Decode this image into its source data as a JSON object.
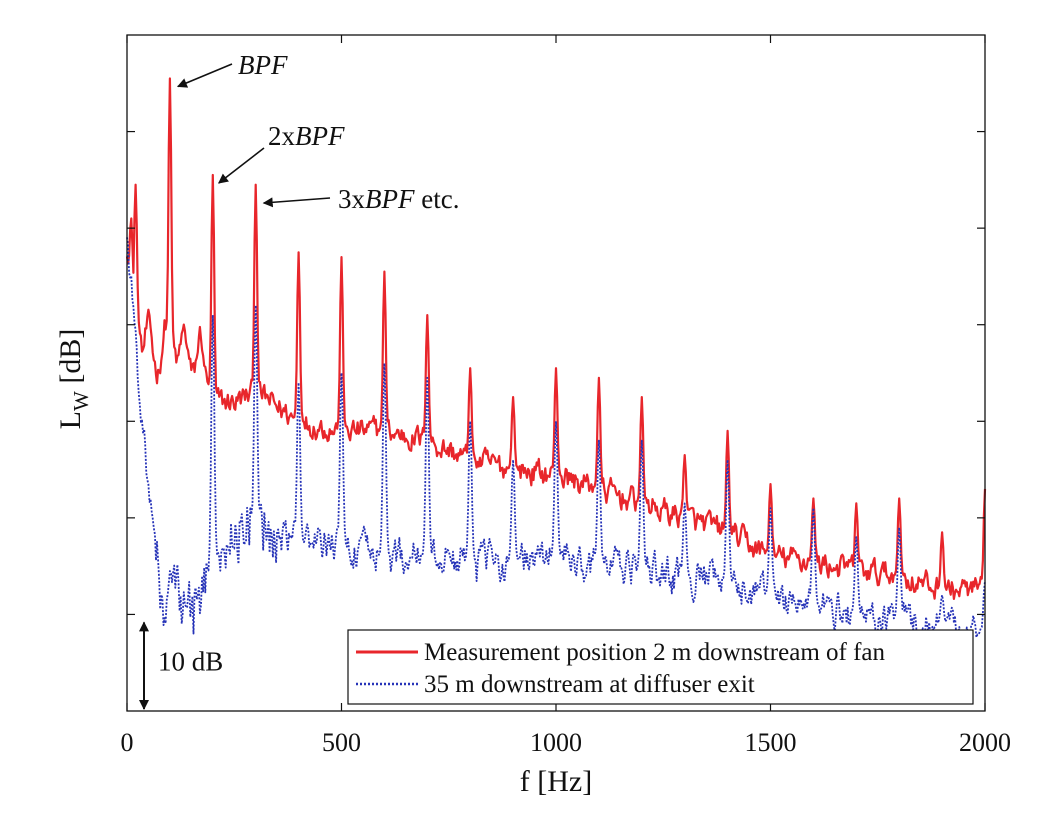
{
  "chart_data": {
    "type": "line",
    "xlabel": "f [Hz]",
    "ylabel": "L",
    "ylabel_sub": "W",
    "ylabel_unit": " [dB]",
    "xlim": [
      0,
      2000
    ],
    "ylim": [
      0,
      70
    ],
    "x_ticks": [
      0,
      500,
      1000,
      1500,
      2000
    ],
    "x_tick_labels": [
      "0",
      "500",
      "1000",
      "1500",
      "2000"
    ],
    "y_tick_values": [
      10,
      20,
      30,
      40,
      50,
      60
    ],
    "y_tick_labels": [],
    "grid": false,
    "legend_position": "bottom-right",
    "scale_bar": {
      "label": "10 dB",
      "from": 0,
      "to": 10
    },
    "annotations": [
      {
        "text_prefix": "",
        "text_italic": "BPF",
        "text_suffix": "",
        "target_x": 100,
        "target_y": 65.5
      },
      {
        "text_prefix": "2x",
        "text_italic": "BPF",
        "text_suffix": "",
        "target_x": 200,
        "target_y": 55.5
      },
      {
        "text_prefix": "3x",
        "text_italic": "BPF",
        "text_suffix": " etc.",
        "target_x": 300,
        "target_y": 54.5
      }
    ],
    "series": [
      {
        "name": "Measurement position 2 m downstream of fan",
        "color": "#e8262b",
        "style": "solid",
        "baseline": [
          [
            0,
            47
          ],
          [
            10,
            42
          ],
          [
            30,
            39
          ],
          [
            60,
            37
          ],
          [
            90,
            38
          ],
          [
            130,
            37
          ],
          [
            170,
            37
          ],
          [
            200,
            32
          ],
          [
            250,
            32
          ],
          [
            300,
            33
          ],
          [
            400,
            30
          ],
          [
            500,
            29
          ],
          [
            600,
            29
          ],
          [
            700,
            28
          ],
          [
            800,
            26
          ],
          [
            900,
            25
          ],
          [
            1000,
            24.5
          ],
          [
            1100,
            23
          ],
          [
            1200,
            21.5
          ],
          [
            1300,
            20
          ],
          [
            1400,
            18.5
          ],
          [
            1500,
            16
          ],
          [
            1600,
            15.5
          ],
          [
            1700,
            14.5
          ],
          [
            1800,
            14
          ],
          [
            1900,
            12.5
          ],
          [
            2000,
            12.5
          ]
        ],
        "peaks": [
          [
            10,
            51
          ],
          [
            20,
            54.5
          ],
          [
            100,
            65.5
          ],
          [
            200,
            55.5
          ],
          [
            300,
            54.5
          ],
          [
            400,
            47.5
          ],
          [
            500,
            47
          ],
          [
            600,
            45.5
          ],
          [
            700,
            41
          ],
          [
            800,
            35.5
          ],
          [
            900,
            32.5
          ],
          [
            1000,
            35.5
          ],
          [
            1100,
            34.5
          ],
          [
            1200,
            32.5
          ],
          [
            1300,
            26.5
          ],
          [
            1400,
            29
          ],
          [
            1500,
            23.5
          ],
          [
            1600,
            22
          ],
          [
            1700,
            21.5
          ],
          [
            1800,
            22
          ],
          [
            1900,
            18.5
          ],
          [
            2000,
            23
          ]
        ]
      },
      {
        "name": "35 m downstream at diffuser exit",
        "color": "#2633b8",
        "style": "dotted",
        "baseline": [
          [
            0,
            49
          ],
          [
            10,
            44
          ],
          [
            30,
            33
          ],
          [
            50,
            23
          ],
          [
            70,
            14
          ],
          [
            90,
            9
          ],
          [
            110,
            13
          ],
          [
            140,
            10
          ],
          [
            170,
            12
          ],
          [
            200,
            15
          ],
          [
            250,
            18
          ],
          [
            300,
            19
          ],
          [
            350,
            18
          ],
          [
            400,
            17.5
          ],
          [
            500,
            17
          ],
          [
            600,
            16
          ],
          [
            700,
            16
          ],
          [
            800,
            15.5
          ],
          [
            900,
            15.5
          ],
          [
            1000,
            16
          ],
          [
            1100,
            15
          ],
          [
            1200,
            14.5
          ],
          [
            1300,
            14
          ],
          [
            1400,
            13
          ],
          [
            1500,
            12
          ],
          [
            1600,
            11
          ],
          [
            1700,
            10
          ],
          [
            1800,
            9.5
          ],
          [
            1900,
            9
          ],
          [
            2000,
            8
          ]
        ],
        "peaks": [
          [
            100,
            14.5
          ],
          [
            200,
            41
          ],
          [
            300,
            42
          ],
          [
            400,
            34
          ],
          [
            500,
            35
          ],
          [
            600,
            36
          ],
          [
            700,
            34.5
          ],
          [
            800,
            30
          ],
          [
            900,
            26
          ],
          [
            1000,
            30
          ],
          [
            1100,
            28
          ],
          [
            1200,
            28
          ],
          [
            1300,
            21.5
          ],
          [
            1400,
            26
          ],
          [
            1500,
            21
          ],
          [
            1600,
            21
          ],
          [
            1700,
            18
          ],
          [
            1800,
            19
          ],
          [
            1900,
            12
          ],
          [
            2000,
            13.5
          ]
        ]
      }
    ]
  }
}
